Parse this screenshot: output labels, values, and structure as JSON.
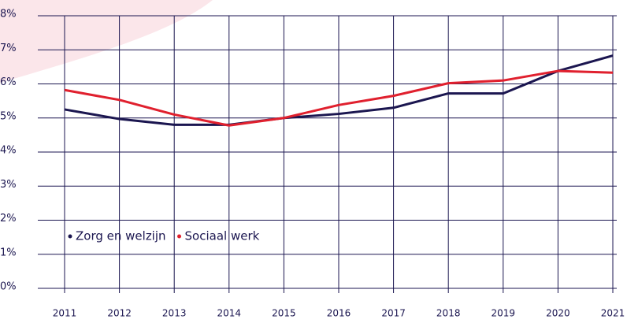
{
  "chart_data": {
    "type": "line",
    "categories": [
      "2011",
      "2012",
      "2013",
      "2014",
      "2015",
      "2016",
      "2017",
      "2018",
      "2019",
      "2020",
      "2021"
    ],
    "series": [
      {
        "name": "Zorg en welzijn",
        "color": "#1b1650",
        "values": [
          5.25,
          4.97,
          4.8,
          4.8,
          5.0,
          5.12,
          5.3,
          5.72,
          5.72,
          6.38,
          6.83
        ]
      },
      {
        "name": "Sociaal werk",
        "color": "#e0202e",
        "values": [
          5.82,
          5.53,
          5.1,
          4.78,
          5.0,
          5.38,
          5.65,
          6.02,
          6.1,
          6.38,
          6.33
        ]
      }
    ],
    "ylim": [
      0,
      8
    ],
    "yticks": [
      {
        "value": 0,
        "label": "0%"
      },
      {
        "value": 1,
        "label": "1%"
      },
      {
        "value": 2,
        "label": "2%"
      },
      {
        "value": 3,
        "label": "3%"
      },
      {
        "value": 4,
        "label": "4%"
      },
      {
        "value": 5,
        "label": "5%"
      },
      {
        "value": 6,
        "label": "6%"
      },
      {
        "value": 7,
        "label": "7%"
      },
      {
        "value": 8,
        "label": "8%"
      }
    ],
    "grid": true,
    "legend": "bottom-left"
  }
}
